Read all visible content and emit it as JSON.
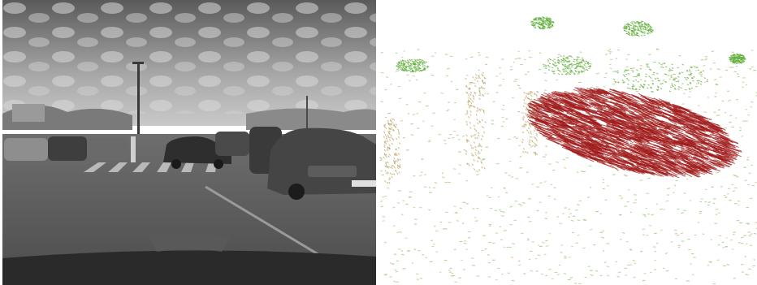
{
  "figure": {
    "left_image": {
      "kind": "grayscale-camera-frame"
    },
    "right_image": {
      "kind": "sparse-scene-flow-vector-field"
    },
    "colors": {
      "moving_vectors": "#a01a1a",
      "static_vectors_green": "#5fae3a",
      "static_vectors_tan": "#b89a5a",
      "background": "#ffffff"
    }
  }
}
